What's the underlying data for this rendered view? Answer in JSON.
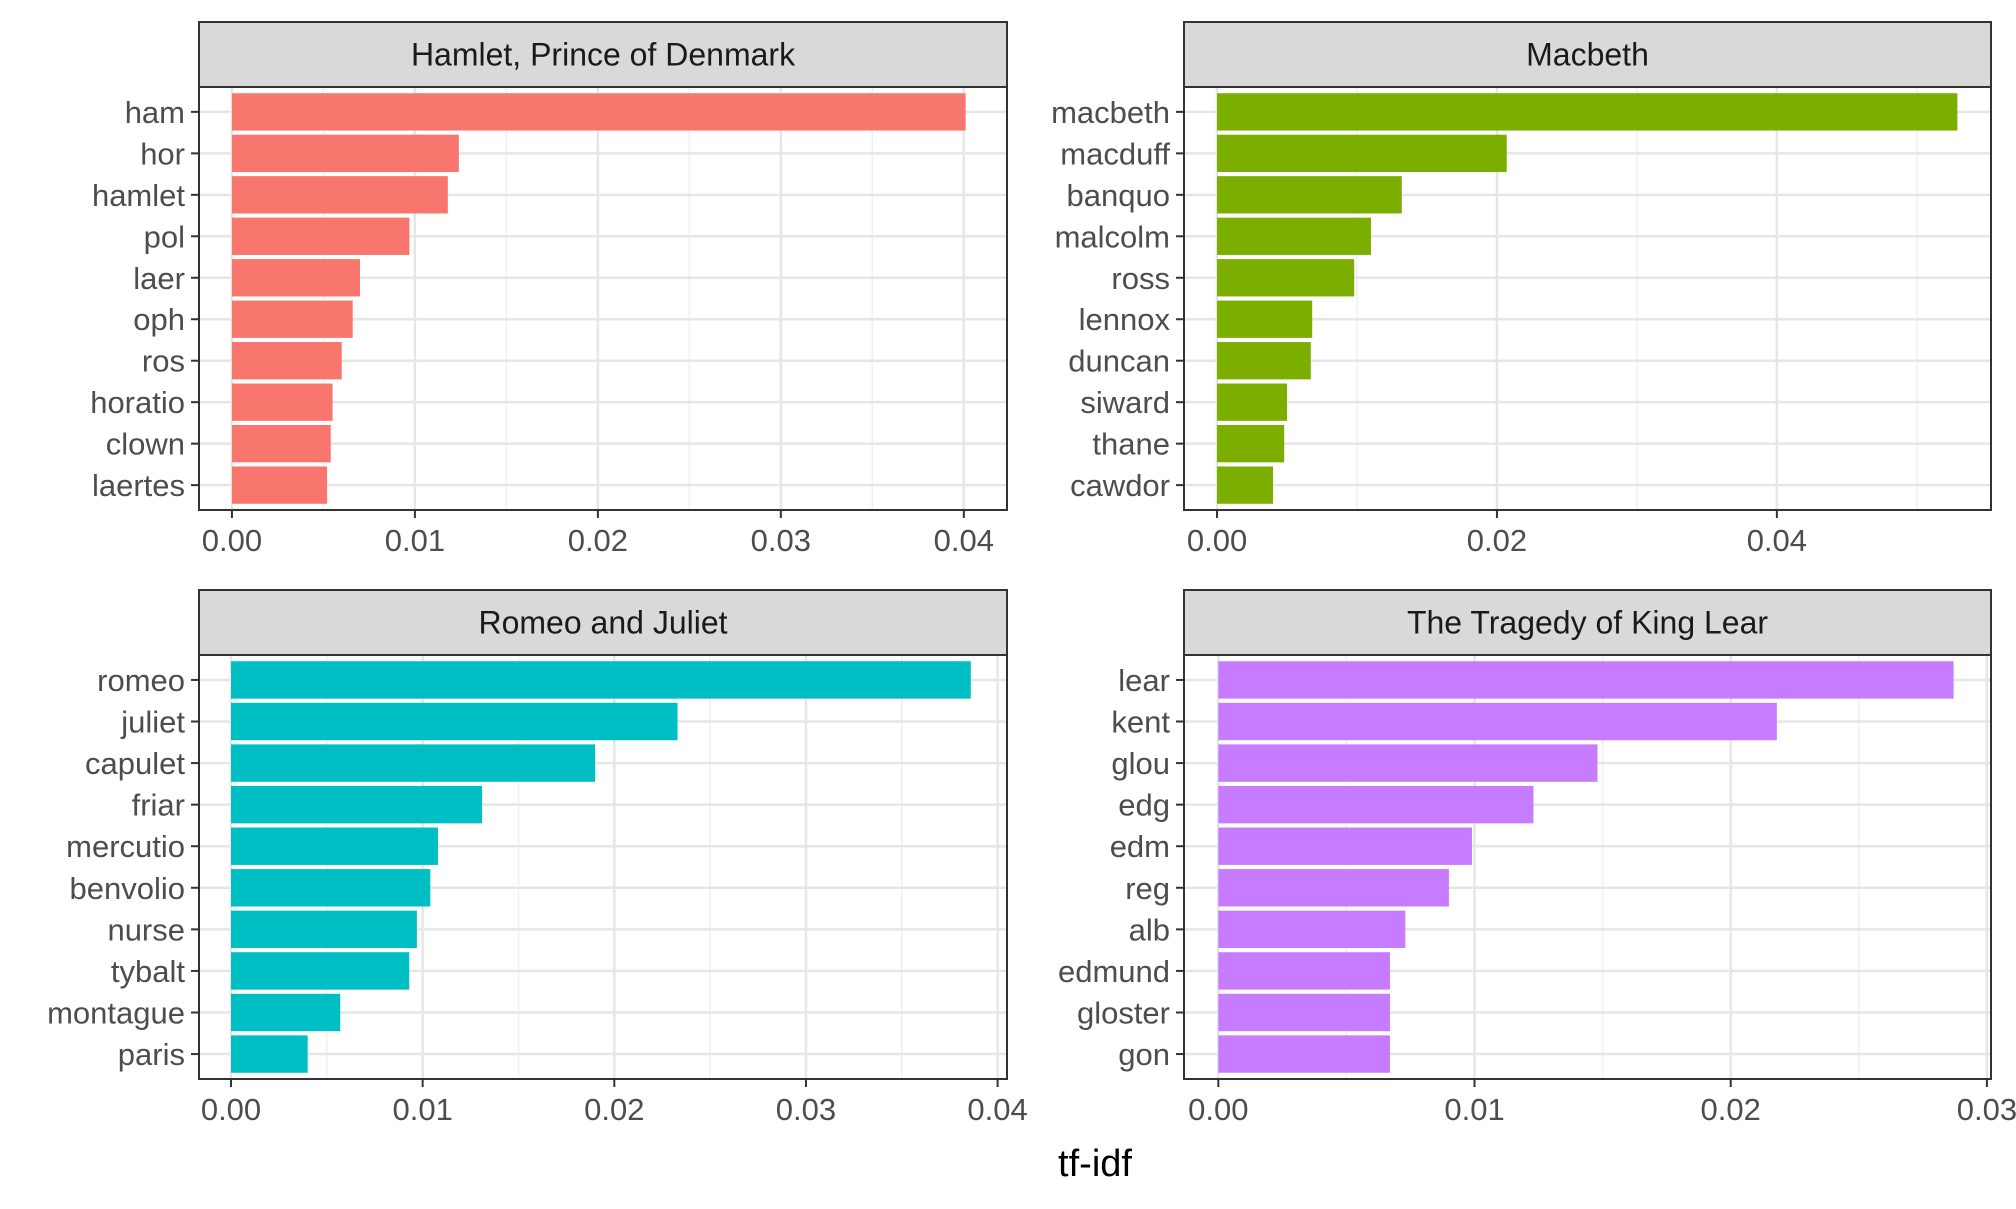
{
  "figure": {
    "xlabel": "tf-idf"
  },
  "chart_data": [
    {
      "type": "bar",
      "orientation": "horizontal",
      "title": "Hamlet, Prince of Denmark",
      "color": "#F8766D",
      "categories": [
        "ham",
        "hor",
        "hamlet",
        "pol",
        "laer",
        "oph",
        "ros",
        "horatio",
        "clown",
        "laertes"
      ],
      "values": [
        0.0401,
        0.0124,
        0.0118,
        0.0097,
        0.007,
        0.0066,
        0.006,
        0.0055,
        0.0054,
        0.0052
      ],
      "xlim": [
        -0.0018,
        0.04236
      ],
      "xticks": [
        0.0,
        0.01,
        0.02,
        0.03,
        0.04
      ],
      "xtick_labels": [
        "0.00",
        "0.01",
        "0.02",
        "0.03",
        "0.04"
      ],
      "grid": true
    },
    {
      "type": "bar",
      "orientation": "horizontal",
      "title": "Macbeth",
      "color": "#7CAE00",
      "categories": [
        "macbeth",
        "macduff",
        "banquo",
        "malcolm",
        "ross",
        "lennox",
        "duncan",
        "siward",
        "thane",
        "cawdor"
      ],
      "values": [
        0.0529,
        0.0207,
        0.0132,
        0.011,
        0.0098,
        0.0068,
        0.0067,
        0.005,
        0.0048,
        0.004
      ],
      "xlim": [
        -0.00236,
        0.0553
      ],
      "xticks": [
        0.0,
        0.02,
        0.04
      ],
      "xtick_labels": [
        "0.00",
        "0.02",
        "0.04"
      ],
      "grid": true
    },
    {
      "type": "bar",
      "orientation": "horizontal",
      "title": "Romeo and Juliet",
      "color": "#00BFC4",
      "categories": [
        "romeo",
        "juliet",
        "capulet",
        "friar",
        "mercutio",
        "benvolio",
        "nurse",
        "tybalt",
        "montague",
        "paris"
      ],
      "values": [
        0.0386,
        0.0233,
        0.019,
        0.0131,
        0.0108,
        0.0104,
        0.0097,
        0.0093,
        0.0057,
        0.004
      ],
      "xlim": [
        -0.00167,
        0.04049
      ],
      "xticks": [
        0.0,
        0.01,
        0.02,
        0.03,
        0.04
      ],
      "xtick_labels": [
        "0.00",
        "0.01",
        "0.02",
        "0.03",
        "0.04"
      ],
      "grid": true
    },
    {
      "type": "bar",
      "orientation": "horizontal",
      "title": "The Tragedy of King Lear",
      "color": "#C77CFF",
      "categories": [
        "lear",
        "kent",
        "glou",
        "edg",
        "edm",
        "reg",
        "alb",
        "edmund",
        "gloster",
        "gon"
      ],
      "values": [
        0.0287,
        0.0218,
        0.0148,
        0.0123,
        0.0099,
        0.009,
        0.0073,
        0.0067,
        0.0067,
        0.0067
      ],
      "xlim": [
        -0.00134,
        0.03016
      ],
      "xticks": [
        0.0,
        0.01,
        0.02,
        0.03
      ],
      "xtick_labels": [
        "0.00",
        "0.01",
        "0.02",
        "0.03"
      ],
      "grid": true
    }
  ]
}
